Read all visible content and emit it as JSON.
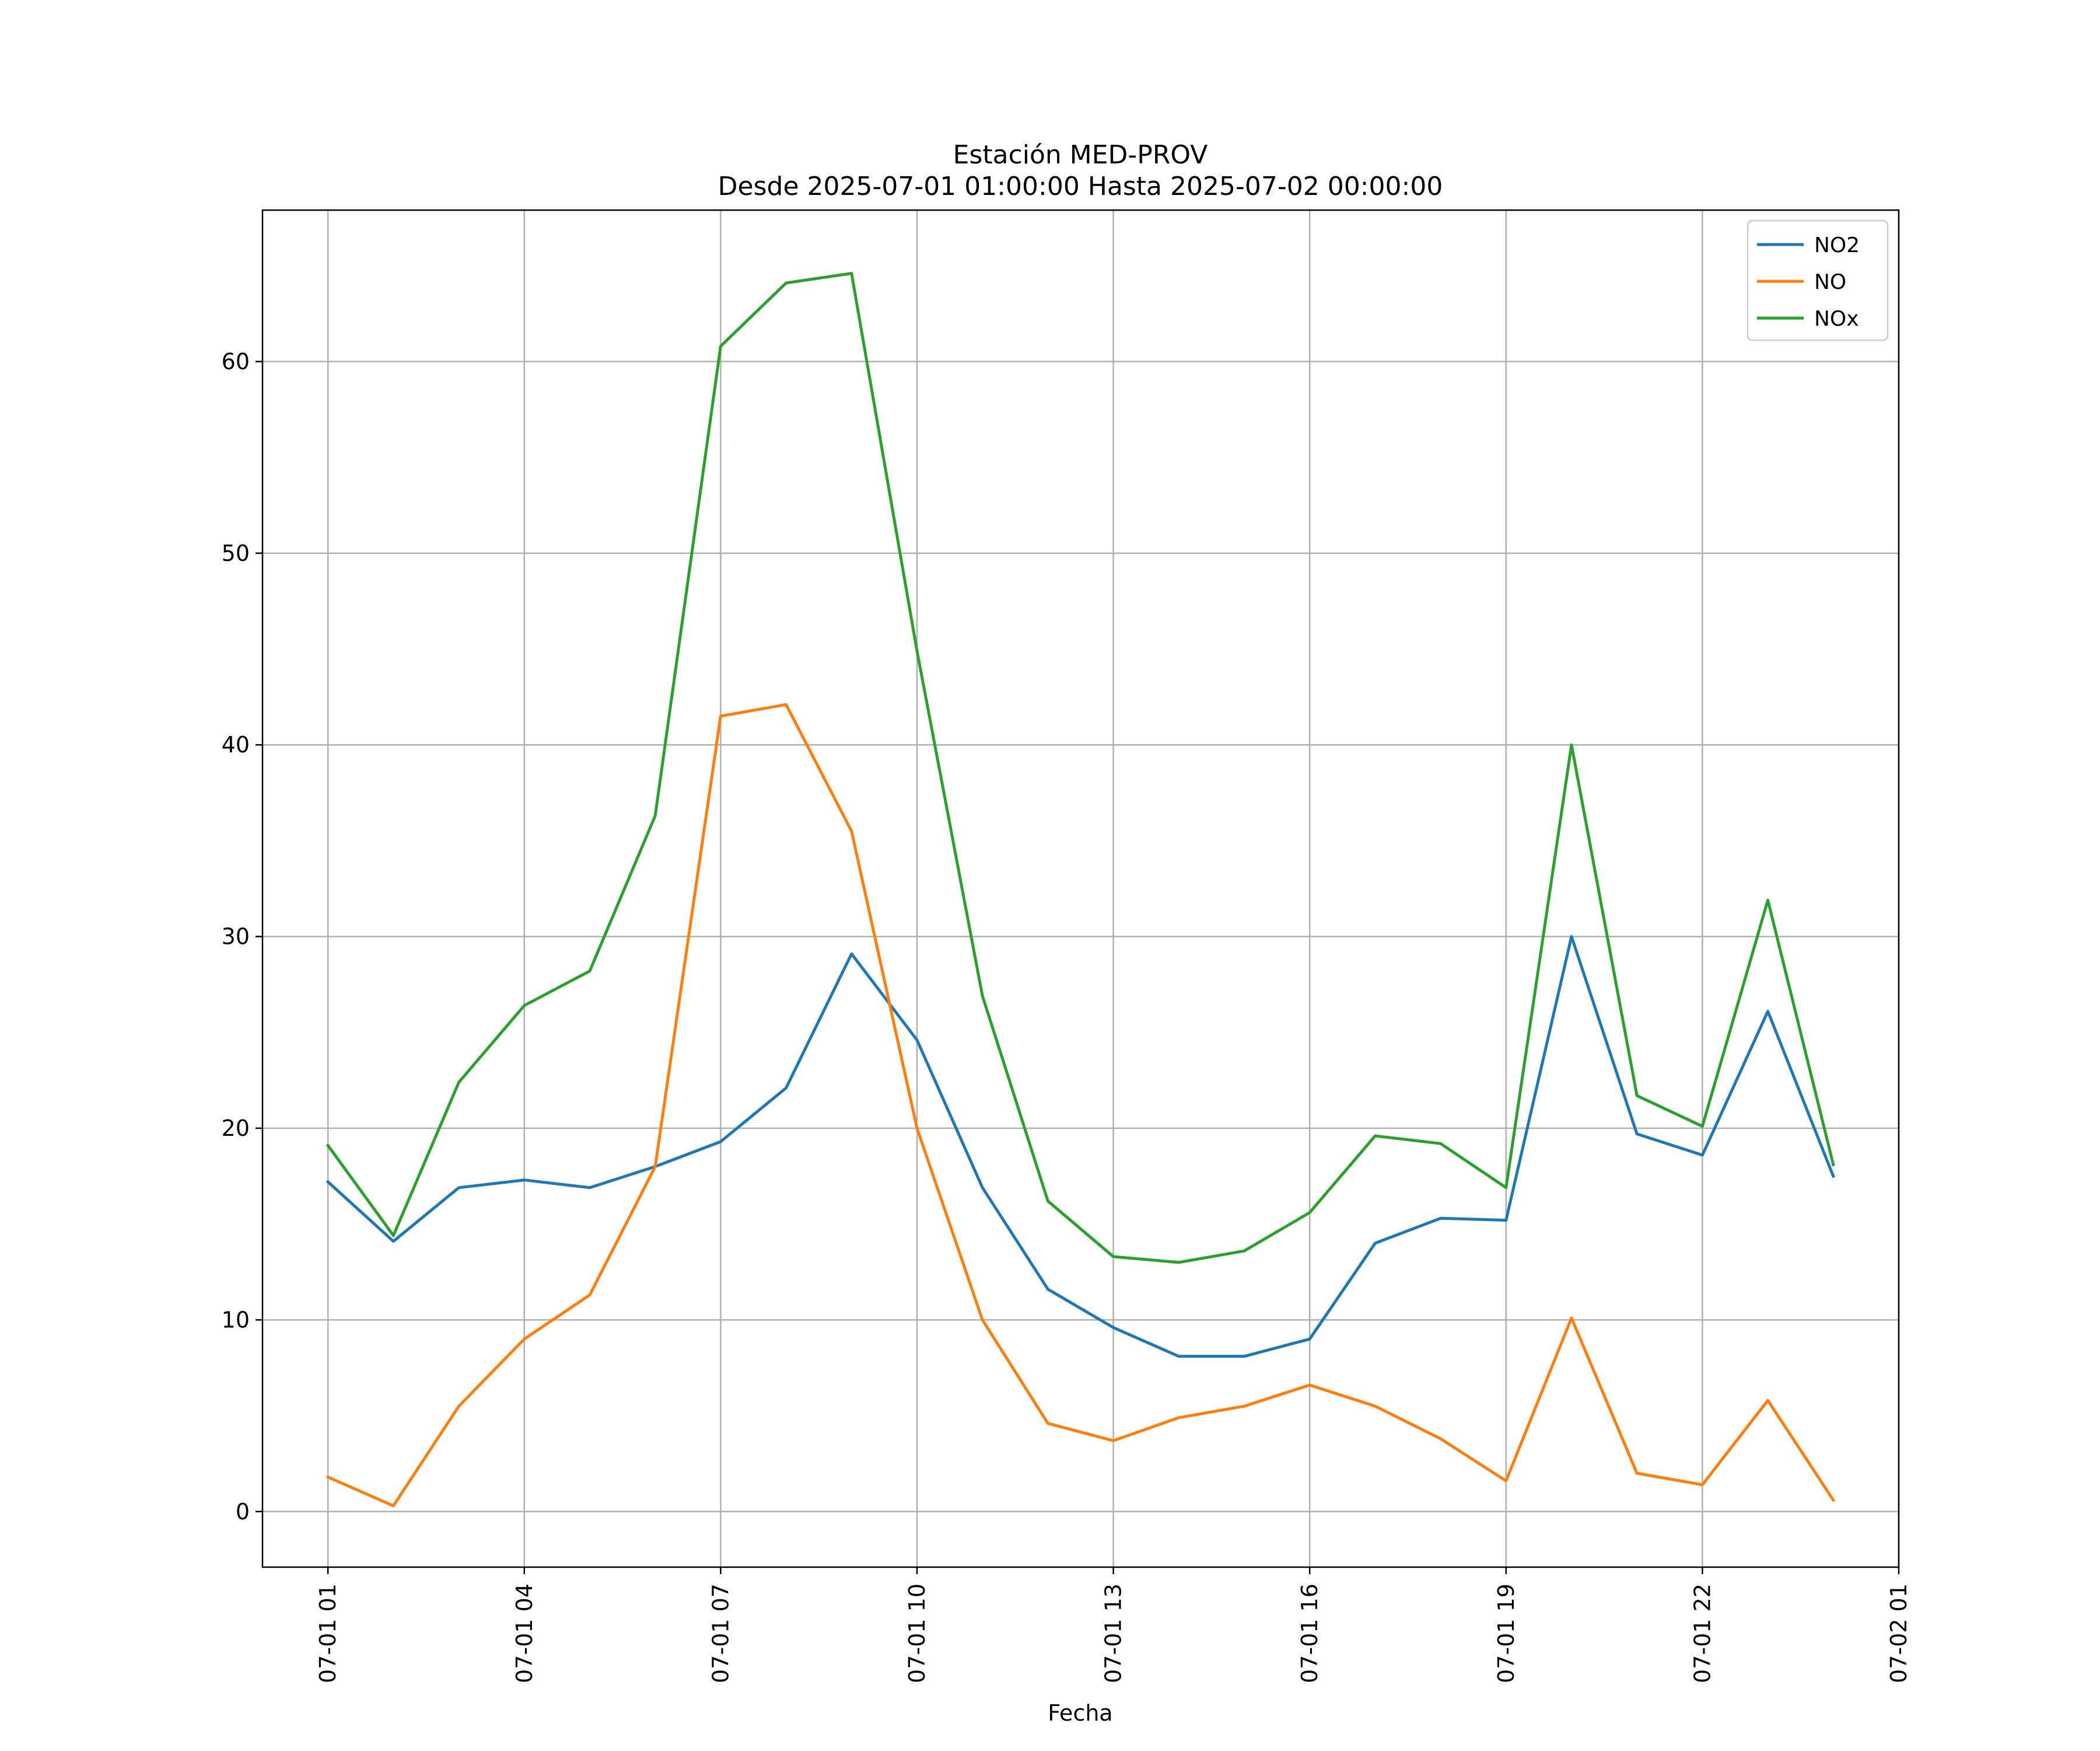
{
  "chart_data": {
    "type": "line",
    "title": "Estación MED-PROV",
    "subtitle": "Desde 2025-07-01 01:00:00 Hasta 2025-07-02 00:00:00",
    "xlabel": "Fecha",
    "ylabel": "",
    "x": [
      "2025-07-01 01:00",
      "2025-07-01 02:00",
      "2025-07-01 03:00",
      "2025-07-01 04:00",
      "2025-07-01 05:00",
      "2025-07-01 06:00",
      "2025-07-01 07:00",
      "2025-07-01 08:00",
      "2025-07-01 09:00",
      "2025-07-01 10:00",
      "2025-07-01 11:00",
      "2025-07-01 12:00",
      "2025-07-01 13:00",
      "2025-07-01 14:00",
      "2025-07-01 15:00",
      "2025-07-01 16:00",
      "2025-07-01 17:00",
      "2025-07-01 18:00",
      "2025-07-01 19:00",
      "2025-07-01 20:00",
      "2025-07-01 21:00",
      "2025-07-01 22:00",
      "2025-07-01 23:00",
      "2025-07-02 00:00"
    ],
    "xlim": [
      "2025-07-01 00:00",
      "2025-07-02 01:00"
    ],
    "ylim": [
      -2.9,
      67.9
    ],
    "x_ticks": [
      "2025-07-01 01:00",
      "2025-07-01 04:00",
      "2025-07-01 07:00",
      "2025-07-01 10:00",
      "2025-07-01 13:00",
      "2025-07-01 16:00",
      "2025-07-01 19:00",
      "2025-07-01 22:00",
      "2025-07-02 01:00"
    ],
    "x_tick_labels": [
      "07-01 01",
      "07-01 04",
      "07-01 07",
      "07-01 10",
      "07-01 13",
      "07-01 16",
      "07-01 19",
      "07-01 22",
      "07-02 01"
    ],
    "y_ticks": [
      0,
      10,
      20,
      30,
      40,
      50,
      60
    ],
    "y_tick_labels": [
      "0",
      "10",
      "20",
      "30",
      "40",
      "50",
      "60"
    ],
    "grid": true,
    "legend_position": "top-right",
    "series": [
      {
        "name": "NO2",
        "color": "#1f77b4",
        "values": [
          17.2,
          14.1,
          16.9,
          17.3,
          16.9,
          18.0,
          19.3,
          22.1,
          29.1,
          24.6,
          16.9,
          11.6,
          9.6,
          8.1,
          8.1,
          9.0,
          14.0,
          15.3,
          15.2,
          30.0,
          19.7,
          18.6,
          26.1,
          17.5
        ]
      },
      {
        "name": "NO",
        "color": "#ff7f0e",
        "values": [
          1.8,
          0.3,
          5.5,
          9.0,
          11.3,
          18.0,
          41.5,
          42.1,
          35.5,
          20.0,
          10.0,
          4.6,
          3.7,
          4.9,
          5.5,
          6.6,
          5.5,
          3.8,
          1.6,
          10.1,
          2.0,
          1.4,
          5.8,
          0.6
        ]
      },
      {
        "name": "NOx",
        "color": "#2ca02c",
        "values": [
          19.1,
          14.4,
          22.4,
          26.4,
          28.2,
          36.3,
          60.8,
          64.1,
          64.6,
          44.9,
          26.9,
          16.2,
          13.3,
          13.0,
          13.6,
          15.6,
          19.6,
          19.2,
          16.9,
          40.0,
          21.7,
          20.1,
          31.9,
          18.1
        ]
      }
    ]
  }
}
